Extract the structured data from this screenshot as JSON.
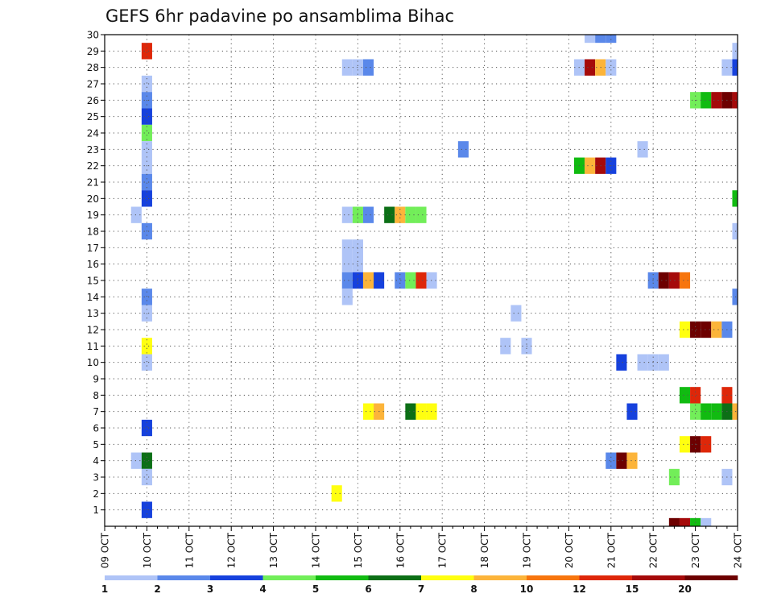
{
  "chart_data": {
    "type": "heatmap",
    "title": "GEFS 6hr padavine po ansamblima Bihac",
    "xlabel": "",
    "ylabel": "",
    "x_range": [
      0,
      15
    ],
    "y_range": [
      0,
      30
    ],
    "x_tick_labels": [
      "09 OCT",
      "10 OCT",
      "11 OCT",
      "12 OCT",
      "13 OCT",
      "14 OCT",
      "15 OCT",
      "16 OCT",
      "17 OCT",
      "18 OCT",
      "19 OCT",
      "20 OCT",
      "21 OCT",
      "22 OCT",
      "23 OCT",
      "24 OCT"
    ],
    "y_ticks": [
      1,
      2,
      3,
      4,
      5,
      6,
      7,
      8,
      9,
      10,
      11,
      12,
      13,
      14,
      15,
      16,
      17,
      18,
      19,
      20,
      21,
      22,
      23,
      24,
      25,
      26,
      27,
      28,
      29,
      30
    ],
    "grid": true,
    "legend_position": "bottom",
    "legend": {
      "labels": [
        "1",
        "2",
        "3",
        "4",
        "5",
        "6",
        "7",
        "8",
        "10",
        "12",
        "15",
        "20"
      ],
      "colors": [
        "#afc4f7",
        "#5a88ea",
        "#1641dd",
        "#72ee59",
        "#11bb11",
        "#0c6f16",
        "#ffff10",
        "#fcb43a",
        "#f7750d",
        "#de2709",
        "#a50a0a",
        "#6d0000"
      ]
    },
    "cells_note": "each cell: [x position in days after 09 OCT 00z, ensemble member, color class 1-12]",
    "cells": [
      [
        1.0,
        29,
        10
      ],
      [
        1.0,
        27,
        1
      ],
      [
        1.0,
        26,
        2
      ],
      [
        1.0,
        25,
        3
      ],
      [
        1.0,
        24,
        4
      ],
      [
        1.0,
        23,
        1
      ],
      [
        1.0,
        22,
        1
      ],
      [
        1.0,
        21,
        2
      ],
      [
        1.0,
        20,
        3
      ],
      [
        0.75,
        19,
        1
      ],
      [
        1.0,
        18,
        2
      ],
      [
        1.0,
        14,
        2
      ],
      [
        1.0,
        13,
        1
      ],
      [
        1.0,
        11,
        7
      ],
      [
        1.0,
        10,
        1
      ],
      [
        1.0,
        6,
        3
      ],
      [
        0.75,
        4,
        1
      ],
      [
        1.0,
        4,
        6
      ],
      [
        1.0,
        3,
        1
      ],
      [
        1.0,
        1,
        3
      ],
      [
        5.5,
        2,
        7
      ],
      [
        5.75,
        28,
        1
      ],
      [
        6.0,
        28,
        1
      ],
      [
        6.25,
        28,
        2
      ],
      [
        5.75,
        19,
        1
      ],
      [
        6.0,
        19,
        4
      ],
      [
        6.25,
        19,
        2
      ],
      [
        6.75,
        19,
        6
      ],
      [
        7.0,
        19,
        8
      ],
      [
        7.25,
        19,
        4
      ],
      [
        7.5,
        19,
        4
      ],
      [
        5.75,
        17,
        1
      ],
      [
        6.0,
        17,
        1
      ],
      [
        5.75,
        16,
        1
      ],
      [
        6.0,
        16,
        1
      ],
      [
        5.75,
        15,
        2
      ],
      [
        6.0,
        15,
        3
      ],
      [
        6.25,
        15,
        8
      ],
      [
        6.5,
        15,
        3
      ],
      [
        7.0,
        15,
        2
      ],
      [
        7.25,
        15,
        4
      ],
      [
        7.5,
        15,
        10
      ],
      [
        7.75,
        15,
        1
      ],
      [
        5.75,
        14,
        1
      ],
      [
        6.25,
        7,
        7
      ],
      [
        6.5,
        7,
        8
      ],
      [
        7.25,
        7,
        6
      ],
      [
        7.5,
        7,
        7
      ],
      [
        7.75,
        7,
        7
      ],
      [
        8.5,
        23,
        2
      ],
      [
        9.5,
        11,
        1
      ],
      [
        9.75,
        13,
        1
      ],
      [
        10.0,
        11,
        1
      ],
      [
        11.5,
        30,
        1
      ],
      [
        11.75,
        30,
        2
      ],
      [
        12.0,
        30,
        2
      ],
      [
        11.25,
        28,
        1
      ],
      [
        11.5,
        28,
        11
      ],
      [
        11.75,
        28,
        8
      ],
      [
        12.0,
        28,
        1
      ],
      [
        11.25,
        22,
        5
      ],
      [
        11.5,
        22,
        8
      ],
      [
        11.75,
        22,
        11
      ],
      [
        12.0,
        22,
        3
      ],
      [
        12.25,
        10,
        3
      ],
      [
        12.0,
        4,
        2
      ],
      [
        12.25,
        4,
        12
      ],
      [
        12.5,
        4,
        8
      ],
      [
        12.5,
        7,
        3
      ],
      [
        12.75,
        23,
        1
      ],
      [
        12.75,
        10,
        1
      ],
      [
        13.0,
        10,
        1
      ],
      [
        13.25,
        10,
        1
      ],
      [
        13.0,
        15,
        2
      ],
      [
        13.25,
        15,
        12
      ],
      [
        13.5,
        15,
        11
      ],
      [
        13.75,
        15,
        9
      ],
      [
        13.75,
        12,
        7
      ],
      [
        14.0,
        12,
        12
      ],
      [
        14.25,
        12,
        12
      ],
      [
        14.5,
        12,
        8
      ],
      [
        14.75,
        12,
        2
      ],
      [
        13.75,
        8,
        5
      ],
      [
        14.0,
        8,
        10
      ],
      [
        14.75,
        8,
        10
      ],
      [
        14.0,
        7,
        4
      ],
      [
        14.25,
        7,
        5
      ],
      [
        14.5,
        7,
        5
      ],
      [
        14.75,
        7,
        6
      ],
      [
        15.0,
        7,
        8
      ],
      [
        13.75,
        5,
        7
      ],
      [
        14.0,
        5,
        12
      ],
      [
        14.25,
        5,
        10
      ],
      [
        13.5,
        3,
        4
      ],
      [
        14.75,
        3,
        1
      ],
      [
        14.0,
        26,
        4
      ],
      [
        14.25,
        26,
        5
      ],
      [
        14.5,
        26,
        11
      ],
      [
        14.75,
        26,
        12
      ],
      [
        15.0,
        26,
        11
      ],
      [
        14.75,
        28,
        1
      ],
      [
        15.0,
        28,
        3
      ],
      [
        15.0,
        29,
        1
      ],
      [
        15.0,
        20,
        5
      ],
      [
        15.0,
        18,
        1
      ],
      [
        15.0,
        14,
        2
      ],
      [
        13.5,
        0,
        12
      ],
      [
        13.75,
        0,
        11
      ],
      [
        14.0,
        0,
        5
      ],
      [
        14.25,
        0,
        1
      ]
    ]
  }
}
